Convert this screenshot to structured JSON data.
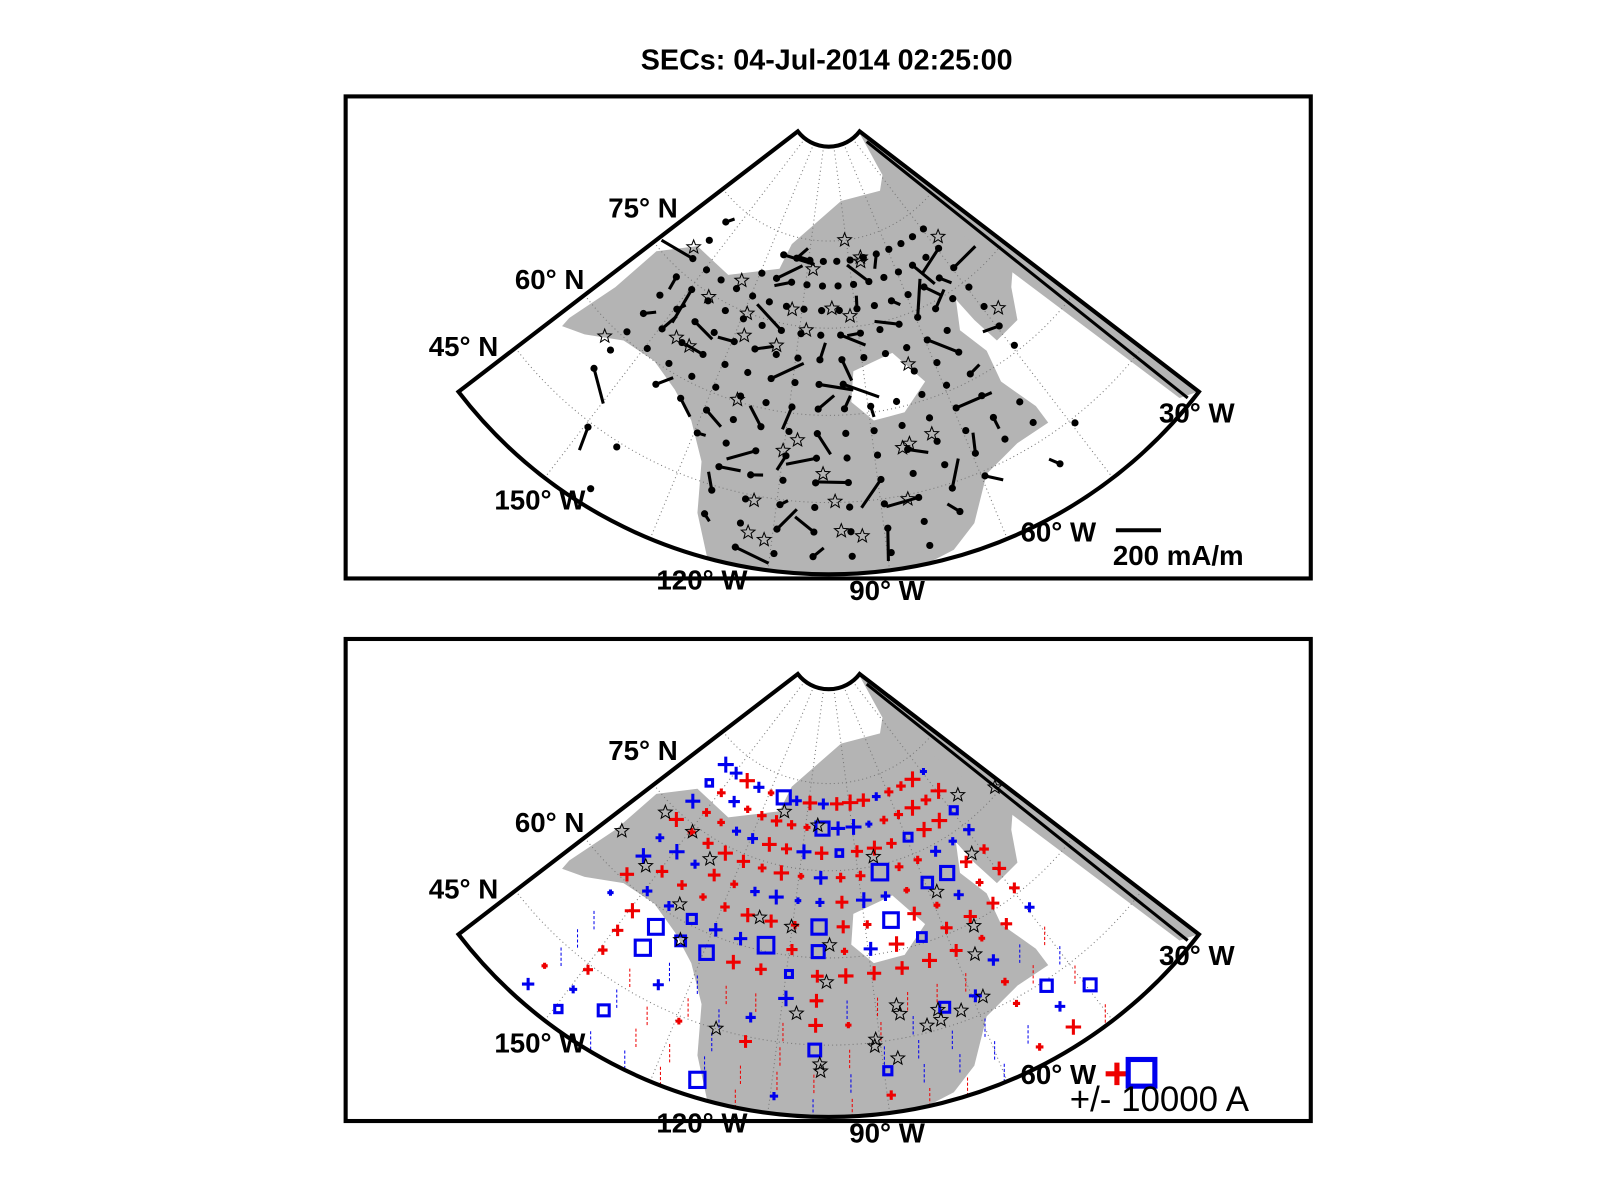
{
  "title": "SECs: 04-Jul-2014 02:25:00",
  "panels": [
    {
      "labels": [
        "75° N",
        "60° N",
        "45° N",
        "30° W",
        "150° W",
        "120° W",
        "90° W",
        "60° W"
      ],
      "scale_label": "200 mA/m"
    },
    {
      "labels": [
        "75° N",
        "60° N",
        "45° N",
        "30° W",
        "150° W",
        "120° W",
        "90° W",
        "60° W"
      ],
      "legend_label": "+/- 10000 A"
    }
  ]
}
